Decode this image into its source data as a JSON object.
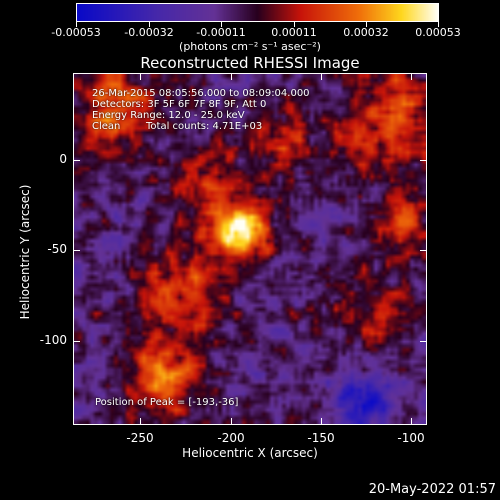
{
  "colorbar": {
    "tick_labels": [
      "-0.00053",
      "-0.00032",
      "-0.00011",
      "0.00011",
      "0.00032",
      "0.00053"
    ],
    "units_label": "(photons cm⁻² s⁻¹ asec⁻²)"
  },
  "title": "Reconstructed RHESSI Image",
  "annotations": {
    "time_range": "26-Mar-2015 08:05:56.000 to 08:09:04.000",
    "detectors": "Detectors: 3F 5F 6F 7F 8F 9F, Att 0",
    "energy_range": "Energy Range: 12.0 - 25.0 keV",
    "method": "Clean",
    "total_counts": "Total counts: 4.71E+03",
    "peak_position": "Position of Peak = [-193,-36]"
  },
  "axes": {
    "xlabel": "Heliocentric X (arcsec)",
    "ylabel": "Heliocentric Y (arcsec)",
    "x_ticks": [
      "-250",
      "-200",
      "-150",
      "-100"
    ],
    "y_ticks": [
      "0",
      "-50",
      "-100"
    ]
  },
  "image": {
    "x_range": [
      -285,
      -90
    ],
    "y_range": [
      -150,
      50
    ],
    "peak": [
      -193,
      -36
    ]
  },
  "footer": {
    "timestamp": "20-May-2022 01:57"
  }
}
